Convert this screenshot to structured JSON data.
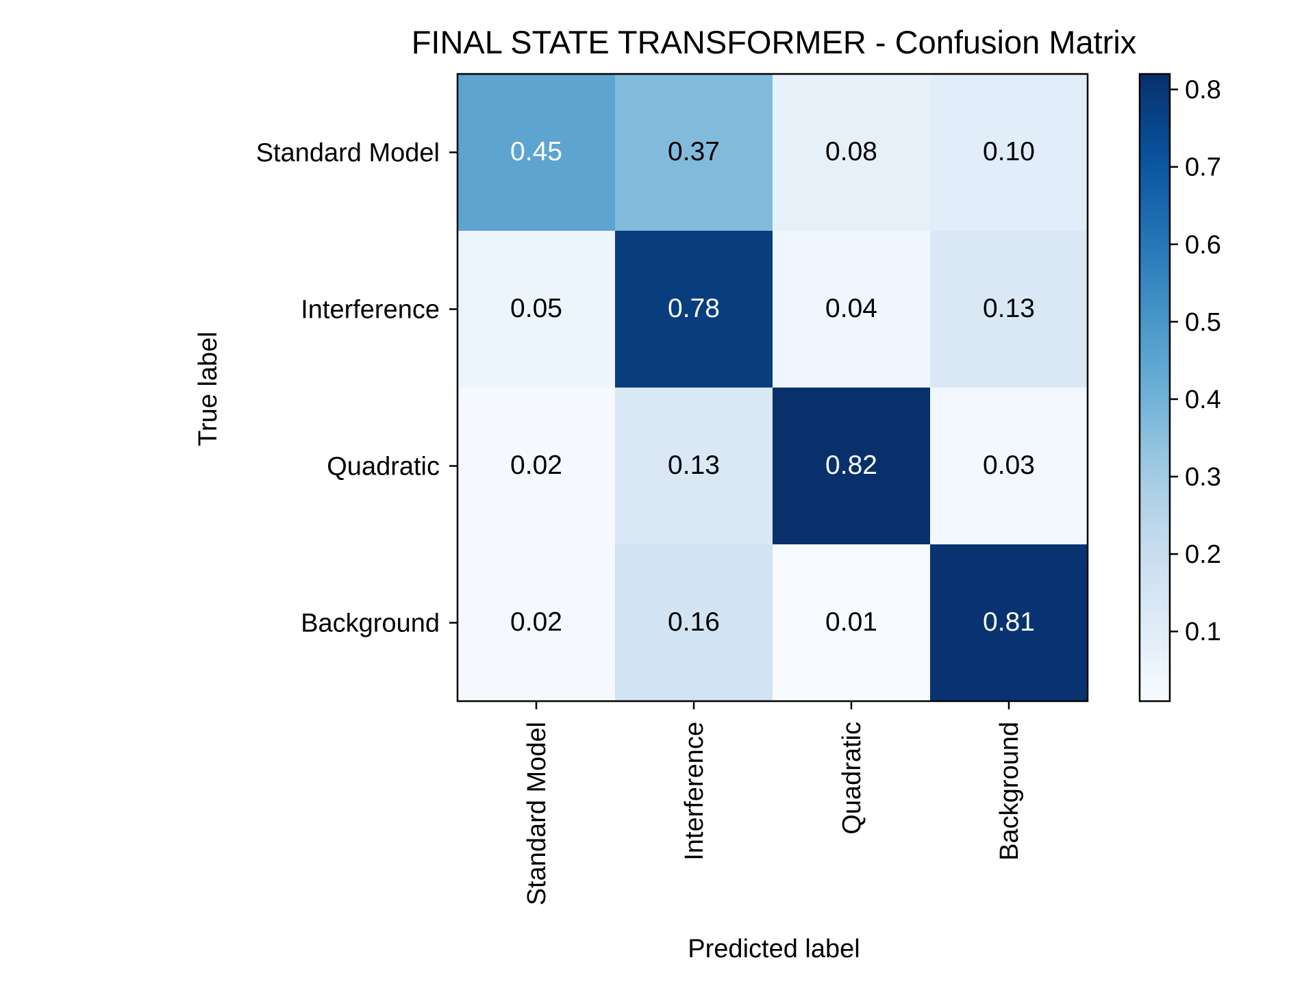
{
  "chart_data": {
    "type": "heatmap",
    "title": "FINAL STATE TRANSFORMER - Confusion Matrix",
    "xlabel": "Predicted label",
    "ylabel": "True label",
    "x_categories": [
      "Standard Model",
      "Interference",
      "Quadratic",
      "Background"
    ],
    "y_categories": [
      "Standard Model",
      "Interference",
      "Quadratic",
      "Background"
    ],
    "values": [
      [
        0.45,
        0.37,
        0.08,
        0.1
      ],
      [
        0.05,
        0.78,
        0.04,
        0.13
      ],
      [
        0.02,
        0.13,
        0.82,
        0.03
      ],
      [
        0.02,
        0.16,
        0.01,
        0.81
      ]
    ],
    "value_labels": [
      [
        "0.45",
        "0.37",
        "0.08",
        "0.10"
      ],
      [
        "0.05",
        "0.78",
        "0.04",
        "0.13"
      ],
      [
        "0.02",
        "0.13",
        "0.82",
        "0.03"
      ],
      [
        "0.02",
        "0.16",
        "0.01",
        "0.81"
      ]
    ],
    "colormap": "Blues",
    "colorbar": {
      "range": [
        0.01,
        0.82
      ],
      "ticks": [
        0.1,
        0.2,
        0.3,
        0.4,
        0.5,
        0.6,
        0.7,
        0.8
      ],
      "tick_labels": [
        "0.1",
        "0.2",
        "0.3",
        "0.4",
        "0.5",
        "0.6",
        "0.7",
        "0.8"
      ]
    },
    "x_tick_rotation": 90,
    "text_color_dark": "#000000",
    "text_color_light": "#ffffff",
    "colors": {
      "axis": "#000000",
      "background": "#ffffff"
    }
  }
}
